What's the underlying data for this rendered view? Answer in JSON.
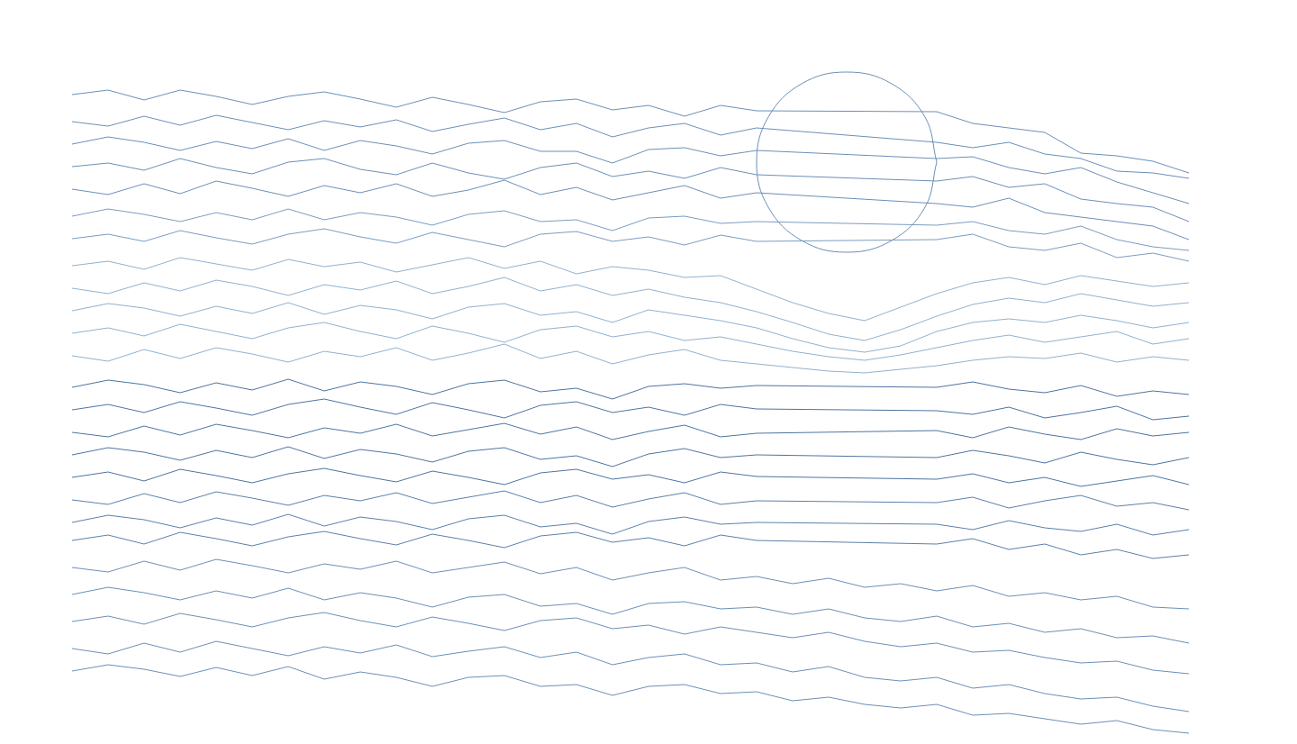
{
  "chart_data": {
    "type": "line",
    "grid": false,
    "tick_labels": false,
    "xlim": [
      0,
      1440
    ],
    "ylim": [
      0,
      826
    ],
    "x": [
      80,
      120,
      160,
      200,
      240,
      280,
      320,
      360,
      400,
      440,
      480,
      520,
      560,
      600,
      640,
      680,
      720,
      760,
      800,
      840,
      880,
      920,
      960,
      1000,
      1040,
      1080,
      1120,
      1160,
      1200,
      1240,
      1280,
      1320
    ],
    "series": [
      {
        "color": "#6b8fb6",
        "values": [
          721,
          726,
          715,
          726,
          719,
          710,
          719,
          724,
          716,
          707,
          718,
          710,
          701,
          713,
          716,
          704,
          709,
          697,
          709,
          703,
          null,
          null,
          null,
          null,
          702,
          689,
          684,
          679,
          656,
          653,
          647,
          634
        ]
      },
      {
        "color": "#6b8fb6",
        "values": [
          691,
          686,
          697,
          687,
          698,
          690,
          682,
          692,
          685,
          693,
          680,
          688,
          695,
          682,
          689,
          674,
          684,
          689,
          676,
          684,
          null,
          null,
          null,
          null,
          668,
          662,
          668,
          655,
          650,
          636,
          634,
          628
        ]
      },
      {
        "color": "#6b8fb6",
        "values": [
          666,
          674,
          668,
          659,
          669,
          661,
          672,
          659,
          670,
          664,
          655,
          667,
          670,
          658,
          658,
          645,
          660,
          662,
          653,
          659,
          null,
          null,
          null,
          null,
          650,
          652,
          640,
          633,
          640,
          624,
          612,
          600
        ]
      },
      {
        "color": "#6b8fb6",
        "values": [
          641,
          645,
          637,
          650,
          640,
          633,
          646,
          650,
          638,
          632,
          645,
          634,
          627,
          640,
          645,
          630,
          636,
          628,
          640,
          632,
          null,
          null,
          null,
          null,
          625,
          630,
          618,
          622,
          605,
          600,
          596,
          580
        ]
      },
      {
        "color": "#6b8fb6",
        "values": [
          616,
          610,
          622,
          611,
          625,
          617,
          608,
          620,
          612,
          622,
          608,
          615,
          626,
          610,
          618,
          604,
          612,
          620,
          606,
          612,
          null,
          null,
          null,
          null,
          600,
          596,
          606,
          590,
          585,
          580,
          575,
          560
        ]
      },
      {
        "color": "#7a9cc0",
        "values": [
          586,
          594,
          588,
          580,
          590,
          582,
          594,
          582,
          590,
          585,
          576,
          588,
          592,
          580,
          582,
          570,
          584,
          586,
          578,
          580,
          null,
          null,
          null,
          null,
          576,
          580,
          570,
          566,
          575,
          560,
          552,
          548
        ]
      },
      {
        "color": "#7a9cc0",
        "values": [
          561,
          566,
          558,
          570,
          562,
          555,
          566,
          572,
          563,
          556,
          568,
          560,
          552,
          566,
          569,
          558,
          563,
          554,
          565,
          558,
          null,
          null,
          null,
          null,
          560,
          566,
          552,
          548,
          556,
          540,
          545,
          536
        ]
      },
      {
        "color": "#8fb1cf",
        "values": [
          531,
          536,
          527,
          540,
          533,
          526,
          538,
          530,
          535,
          524,
          532,
          540,
          528,
          536,
          522,
          530,
          526,
          518,
          520,
          505,
          490,
          478,
          470,
          485,
          500,
          512,
          518,
          510,
          520,
          514,
          508,
          512
        ]
      },
      {
        "color": "#8fb1cf",
        "values": [
          506,
          500,
          512,
          503,
          515,
          508,
          498,
          510,
          504,
          514,
          500,
          508,
          518,
          503,
          510,
          498,
          505,
          496,
          490,
          480,
          468,
          455,
          448,
          460,
          475,
          488,
          495,
          490,
          500,
          493,
          486,
          490
        ]
      },
      {
        "color": "#8fb1cf",
        "values": [
          481,
          489,
          484,
          475,
          486,
          478,
          490,
          477,
          487,
          482,
          472,
          485,
          489,
          476,
          480,
          468,
          482,
          476,
          470,
          462,
          450,
          440,
          435,
          442,
          458,
          468,
          472,
          468,
          476,
          470,
          462,
          468
        ]
      },
      {
        "color": "#8fb1cf",
        "values": [
          456,
          462,
          453,
          466,
          458,
          450,
          462,
          468,
          458,
          450,
          464,
          456,
          446,
          460,
          464,
          452,
          458,
          448,
          452,
          444,
          436,
          430,
          426,
          432,
          440,
          448,
          454,
          446,
          452,
          458,
          444,
          450
        ]
      },
      {
        "color": "#8fb1cf",
        "values": [
          431,
          425,
          438,
          428,
          440,
          433,
          424,
          436,
          430,
          440,
          426,
          434,
          444,
          428,
          436,
          422,
          432,
          438,
          426,
          422,
          418,
          414,
          412,
          416,
          420,
          426,
          430,
          428,
          434,
          424,
          430,
          426
        ]
      },
      {
        "color": "#4c74a0",
        "values": [
          396,
          404,
          399,
          390,
          401,
          393,
          405,
          392,
          402,
          397,
          388,
          400,
          404,
          391,
          395,
          383,
          397,
          400,
          395,
          398,
          null,
          null,
          null,
          null,
          396,
          402,
          394,
          390,
          398,
          386,
          392,
          388
        ]
      },
      {
        "color": "#4c74a0",
        "values": [
          371,
          377,
          368,
          380,
          373,
          365,
          377,
          383,
          374,
          366,
          379,
          371,
          362,
          376,
          380,
          368,
          374,
          365,
          377,
          372,
          null,
          null,
          null,
          null,
          370,
          366,
          374,
          362,
          368,
          375,
          360,
          364
        ]
      },
      {
        "color": "#4c74a0",
        "values": [
          346,
          341,
          353,
          343,
          355,
          348,
          340,
          351,
          345,
          355,
          342,
          349,
          356,
          344,
          352,
          338,
          347,
          354,
          341,
          345,
          null,
          null,
          null,
          null,
          348,
          340,
          352,
          344,
          338,
          350,
          342,
          346
        ]
      },
      {
        "color": "#4c74a0",
        "values": [
          321,
          329,
          324,
          315,
          326,
          318,
          330,
          317,
          327,
          322,
          313,
          325,
          329,
          316,
          320,
          308,
          322,
          328,
          318,
          321,
          null,
          null,
          null,
          null,
          318,
          326,
          320,
          312,
          324,
          316,
          310,
          318
        ]
      },
      {
        "color": "#4c74a0",
        "values": [
          296,
          302,
          292,
          305,
          298,
          290,
          300,
          306,
          298,
          291,
          303,
          296,
          288,
          301,
          305,
          294,
          299,
          290,
          302,
          297,
          null,
          null,
          null,
          null,
          294,
          300,
          290,
          296,
          286,
          292,
          298,
          288
        ]
      },
      {
        "color": "#5a80aa",
        "values": [
          271,
          266,
          278,
          268,
          280,
          273,
          265,
          276,
          270,
          279,
          267,
          274,
          281,
          268,
          276,
          263,
          272,
          279,
          266,
          270,
          null,
          null,
          null,
          null,
          268,
          274,
          262,
          270,
          276,
          264,
          268,
          260
        ]
      },
      {
        "color": "#5a80aa",
        "values": [
          246,
          254,
          249,
          240,
          251,
          243,
          255,
          242,
          252,
          247,
          238,
          250,
          254,
          241,
          245,
          233,
          247,
          252,
          244,
          246,
          null,
          null,
          null,
          null,
          244,
          238,
          248,
          240,
          236,
          244,
          232,
          238
        ]
      },
      {
        "color": "#5a80aa",
        "values": [
          226,
          232,
          222,
          235,
          228,
          220,
          230,
          236,
          228,
          221,
          233,
          226,
          218,
          231,
          235,
          224,
          229,
          220,
          232,
          226,
          null,
          null,
          null,
          null,
          222,
          228,
          216,
          222,
          210,
          216,
          206,
          210
        ]
      },
      {
        "color": "#6b8fb6",
        "values": [
          196,
          191,
          203,
          193,
          205,
          198,
          190,
          200,
          194,
          203,
          190,
          196,
          202,
          189,
          196,
          182,
          190,
          196,
          182,
          186,
          178,
          184,
          174,
          178,
          170,
          176,
          164,
          168,
          160,
          164,
          152,
          150
        ]
      },
      {
        "color": "#6b8fb6",
        "values": [
          166,
          174,
          168,
          160,
          170,
          162,
          173,
          160,
          168,
          162,
          152,
          163,
          166,
          153,
          156,
          144,
          156,
          158,
          150,
          152,
          144,
          150,
          140,
          136,
          142,
          130,
          134,
          124,
          128,
          118,
          120,
          112
        ]
      },
      {
        "color": "#6b8fb6",
        "values": [
          136,
          142,
          133,
          145,
          138,
          130,
          140,
          146,
          137,
          130,
          141,
          134,
          126,
          137,
          140,
          128,
          132,
          122,
          130,
          124,
          118,
          124,
          114,
          108,
          112,
          102,
          104,
          96,
          90,
          92,
          82,
          78
        ]
      },
      {
        "color": "#6b8fb6",
        "values": [
          106,
          100,
          112,
          102,
          114,
          106,
          98,
          108,
          101,
          110,
          97,
          103,
          108,
          96,
          102,
          88,
          96,
          100,
          88,
          90,
          80,
          86,
          74,
          70,
          74,
          62,
          66,
          56,
          50,
          52,
          42,
          36
        ]
      },
      {
        "color": "#6b8fb6",
        "values": [
          81,
          88,
          83,
          75,
          85,
          76,
          86,
          72,
          80,
          74,
          64,
          74,
          76,
          64,
          66,
          54,
          64,
          66,
          56,
          58,
          48,
          52,
          44,
          40,
          44,
          32,
          34,
          28,
          22,
          26,
          16,
          12
        ]
      },
      {
        "color": "#6b8fb6",
        "x": [
          1040,
          1027,
          990,
          940,
          890,
          853,
          840,
          853,
          890,
          940,
          990,
          1027,
          1040
        ],
        "values": [
          646,
          696,
          733,
          746,
          733,
          696,
          646,
          596,
          559,
          546,
          559,
          596,
          646
        ]
      }
    ]
  }
}
